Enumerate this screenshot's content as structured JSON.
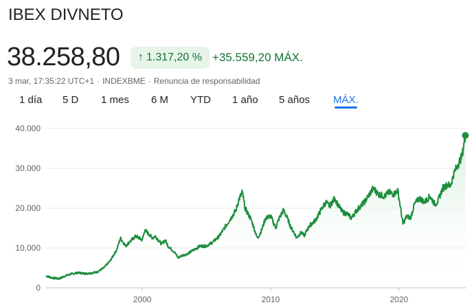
{
  "header": {
    "title": "IBEX DIVNETO",
    "price": "38.258,80",
    "change_percent": "1.317,20 %",
    "change_arrow": "↑",
    "change_value": "+35.559,20 MÁX.",
    "timestamp": "3 mar, 17:35:22 UTC+1",
    "exchange": "INDEXBME",
    "disclaimer": "Renuncia de responsabilidad"
  },
  "tabs": [
    {
      "label": "1 día",
      "active": false
    },
    {
      "label": "5 D",
      "active": false
    },
    {
      "label": "1 mes",
      "active": false
    },
    {
      "label": "6 M",
      "active": false
    },
    {
      "label": "YTD",
      "active": false
    },
    {
      "label": "1 año",
      "active": false
    },
    {
      "label": "5 años",
      "active": false
    },
    {
      "label": "MÁX.",
      "active": true
    }
  ],
  "colors": {
    "line": "#1e8e3e",
    "fill_top": "#ceead6",
    "accent": "#1a73e8",
    "positive": "#137333"
  },
  "chart_data": {
    "type": "area",
    "x_tick_labels": [
      "2000",
      "2010",
      "2020"
    ],
    "y_tick_labels": [
      "0",
      "10.000",
      "20.000",
      "30.000",
      "40.000"
    ],
    "xlim": [
      1992.5,
      2025.2
    ],
    "ylim": [
      0,
      40000
    ],
    "grid": true,
    "series": [
      {
        "x": [
          1992.5,
          1993.0,
          1993.5,
          1994.0,
          1994.5,
          1995.0,
          1995.5,
          1996.0,
          1996.5,
          1997.0,
          1997.5,
          1998.0,
          1998.3,
          1998.7,
          1999.0,
          1999.5,
          2000.0,
          2000.2,
          2000.5,
          2000.8,
          2001.0,
          2001.5,
          2001.8,
          2002.0,
          2002.5,
          2002.8,
          2003.0,
          2003.5,
          2004.0,
          2004.5,
          2005.0,
          2005.5,
          2006.0,
          2006.5,
          2007.0,
          2007.3,
          2007.5,
          2007.8,
          2008.0,
          2008.5,
          2008.9,
          2009.0,
          2009.3,
          2009.6,
          2010.0,
          2010.4,
          2010.6,
          2011.0,
          2011.3,
          2011.6,
          2011.9,
          2012.0,
          2012.4,
          2012.6,
          2013.0,
          2013.5,
          2014.0,
          2014.3,
          2014.6,
          2015.0,
          2015.3,
          2015.6,
          2016.0,
          2016.3,
          2016.6,
          2017.0,
          2017.3,
          2017.6,
          2018.0,
          2018.4,
          2018.9,
          2019.2,
          2019.6,
          2019.9,
          2020.1,
          2020.3,
          2020.6,
          2020.9,
          2021.2,
          2021.6,
          2022.0,
          2022.4,
          2022.8,
          2023.0,
          2023.4,
          2023.8,
          2024.0,
          2024.3,
          2024.6,
          2024.9,
          2025.17
        ],
        "y": [
          3000,
          2500,
          2300,
          3000,
          3500,
          3800,
          3600,
          3700,
          4000,
          5000,
          6800,
          9500,
          12500,
          10500,
          11500,
          13000,
          12000,
          14500,
          13500,
          12500,
          13000,
          11000,
          12000,
          10500,
          9000,
          7500,
          8000,
          8500,
          9500,
          10500,
          10500,
          11500,
          13000,
          15500,
          18000,
          19500,
          22000,
          24000,
          20000,
          17000,
          13000,
          12500,
          14500,
          17500,
          18000,
          15000,
          17000,
          19500,
          17500,
          15000,
          13500,
          12500,
          14000,
          13000,
          15500,
          17000,
          20000,
          21500,
          20500,
          22500,
          20500,
          19000,
          18500,
          17500,
          19000,
          20500,
          21500,
          23000,
          25000,
          23500,
          23000,
          24000,
          23500,
          24500,
          20500,
          16000,
          18000,
          17500,
          21000,
          22500,
          21500,
          23000,
          21000,
          21500,
          25000,
          26000,
          25500,
          29000,
          31000,
          33000,
          38258.8
        ]
      }
    ]
  }
}
